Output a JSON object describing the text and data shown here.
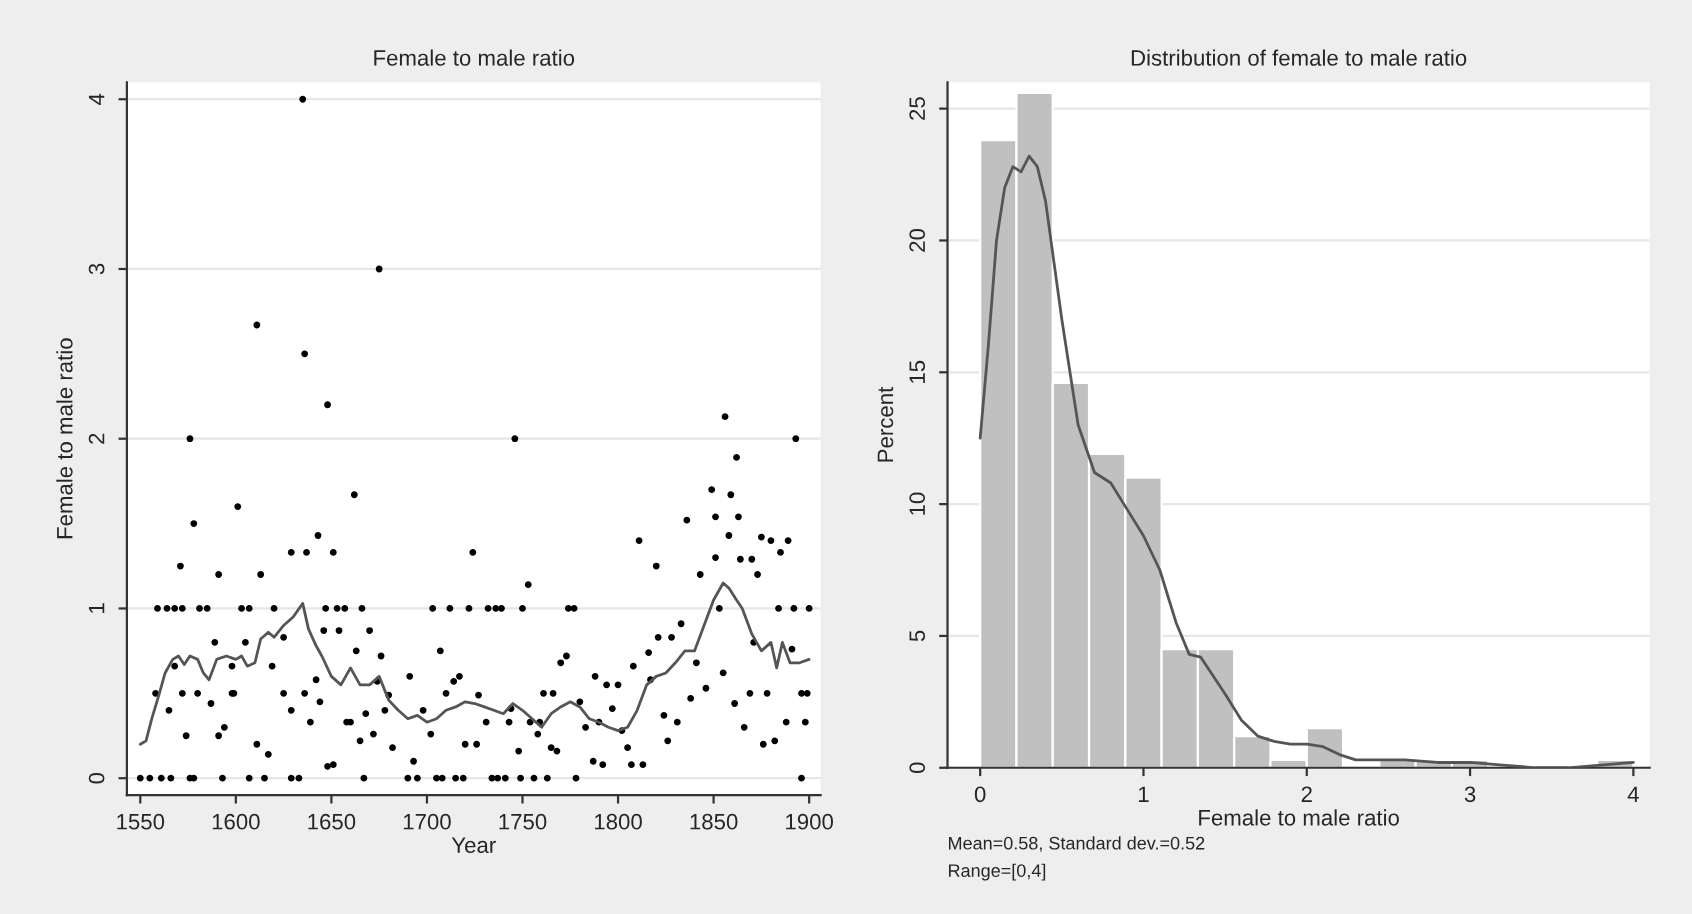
{
  "chart_data": [
    {
      "type": "scatter",
      "title": "Female to male ratio",
      "xlabel": "Year",
      "ylabel": "Female to male ratio",
      "xlim": [
        1543,
        1906
      ],
      "xticks": [
        1550,
        1600,
        1650,
        1700,
        1750,
        1800,
        1850,
        1900
      ],
      "ylim": [
        -0.1,
        4.1
      ],
      "yticks": [
        0,
        1,
        2,
        3,
        4
      ],
      "grid": "y",
      "series": [
        {
          "color": "#000000",
          "marker": "circle",
          "x": [
            1550,
            1555,
            1561,
            1566,
            1559,
            1564,
            1568,
            1572,
            1581,
            1585,
            1571,
            1576,
            1578,
            1558,
            1565,
            1568,
            1572,
            1574,
            1576,
            1578,
            1580,
            1587,
            1589,
            1591,
            1591,
            1593,
            1594,
            1598,
            1598,
            1599,
            1601,
            1603,
            1607,
            1605,
            1607,
            1611,
            1613,
            1611,
            1615,
            1617,
            1619,
            1620,
            1625,
            1625,
            1629,
            1629,
            1629,
            1633,
            1635,
            1636,
            1636,
            1637,
            1639,
            1642,
            1643,
            1644,
            1646,
            1647,
            1648,
            1648,
            1651,
            1651,
            1653,
            1654,
            1657,
            1658,
            1660,
            1662,
            1663,
            1665,
            1666,
            1667,
            1668,
            1670,
            1672,
            1674,
            1676,
            1678,
            1680,
            1682,
            1675,
            1690,
            1693,
            1695,
            1691,
            1698,
            1702,
            1703,
            1705,
            1707,
            1708,
            1710,
            1712,
            1714,
            1715,
            1717,
            1719,
            1720,
            1722,
            1724,
            1726,
            1727,
            1731,
            1732,
            1734,
            1736,
            1737,
            1739,
            1741,
            1743,
            1744,
            1746,
            1748,
            1749,
            1750,
            1753,
            1754,
            1756,
            1758,
            1759,
            1761,
            1763,
            1765,
            1766,
            1768,
            1770,
            1773,
            1774,
            1777,
            1778,
            1780,
            1783,
            1787,
            1788,
            1790,
            1792,
            1794,
            1797,
            1800,
            1802,
            1805,
            1807,
            1808,
            1811,
            1813,
            1816,
            1817,
            1820,
            1821,
            1824,
            1826,
            1828,
            1831,
            1833,
            1836,
            1838,
            1841,
            1843,
            1846,
            1849,
            1851,
            1851,
            1853,
            1855,
            1856,
            1858,
            1859,
            1861,
            1862,
            1863,
            1864,
            1866,
            1869,
            1870,
            1871,
            1873,
            1875,
            1876,
            1878,
            1880,
            1882,
            1884,
            1885,
            1888,
            1889,
            1891,
            1892,
            1893,
            1896,
            1896,
            1898,
            1900,
            1899
          ],
          "values": [
            0,
            0,
            0,
            0,
            1,
            1,
            1,
            1,
            1,
            1,
            1.25,
            2.0,
            1.5,
            0.5,
            0.4,
            0.66,
            0.5,
            0.25,
            0,
            0,
            0.5,
            0.44,
            0.8,
            1.2,
            0.25,
            0,
            0.3,
            0.66,
            0.5,
            0.5,
            1.6,
            1,
            1,
            0.8,
            0,
            2.67,
            1.2,
            0.2,
            0,
            0.14,
            0.66,
            1,
            0.83,
            0.5,
            1.33,
            0.4,
            0,
            0,
            4.0,
            2.5,
            0.5,
            1.33,
            0.33,
            0.58,
            1.43,
            0.45,
            0.87,
            1,
            2.2,
            0.07,
            0.08,
            1.33,
            1,
            0.87,
            1,
            0.33,
            0.33,
            1.67,
            0.75,
            0.22,
            1,
            0,
            0.38,
            0.87,
            0.26,
            0.57,
            0.72,
            0.4,
            0.49,
            0.18,
            3.0,
            0,
            0.1,
            0,
            0.6,
            0.4,
            0.26,
            1,
            0,
            0.75,
            0,
            0.5,
            1,
            0.57,
            0,
            0.6,
            0,
            0.2,
            1,
            1.33,
            0.2,
            0.49,
            0.33,
            1,
            0,
            1,
            0,
            1,
            0,
            0.33,
            0.41,
            2.0,
            0.16,
            0,
            1,
            1.14,
            0.33,
            0,
            0.26,
            0.33,
            0.5,
            0,
            0.18,
            0.5,
            0.16,
            0.68,
            0.72,
            1,
            1,
            0,
            0.45,
            0.3,
            0.1,
            0.6,
            0.33,
            0.08,
            0.55,
            0.41,
            0.55,
            0.28,
            0.18,
            0.08,
            0.66,
            1.4,
            0.08,
            0.74,
            0.58,
            1.25,
            0.83,
            0.37,
            0.22,
            0.83,
            0.33,
            0.91,
            1.52,
            0.47,
            0.68,
            1.2,
            0.53,
            1.7,
            1.3,
            1.54,
            1,
            0.62,
            2.13,
            1.43,
            1.67,
            0.44,
            1.89,
            1.54,
            1.29,
            0.3,
            0.5,
            1.29,
            0.8,
            1.2,
            1.42,
            0.2,
            0.5,
            1.4,
            0.22,
            1,
            1.33,
            0.33,
            1.4,
            0.76,
            1,
            2.0,
            0.5,
            0,
            0.33,
            1,
            0.5
          ]
        },
        {
          "type": "line",
          "color": "#555555",
          "line_style": "solid",
          "x": [
            1550,
            1553,
            1556,
            1560,
            1563,
            1567,
            1570,
            1573,
            1576,
            1580,
            1583,
            1586,
            1590,
            1595,
            1600,
            1603,
            1606,
            1610,
            1613,
            1617,
            1620,
            1625,
            1630,
            1635,
            1638,
            1642,
            1645,
            1650,
            1655,
            1660,
            1665,
            1670,
            1675,
            1680,
            1685,
            1690,
            1695,
            1700,
            1705,
            1710,
            1715,
            1720,
            1725,
            1730,
            1735,
            1740,
            1745,
            1750,
            1755,
            1760,
            1765,
            1770,
            1775,
            1780,
            1785,
            1790,
            1795,
            1800,
            1805,
            1810,
            1815,
            1820,
            1825,
            1830,
            1835,
            1840,
            1845,
            1850,
            1855,
            1858,
            1862,
            1865,
            1870,
            1875,
            1880,
            1883,
            1886,
            1890,
            1895,
            1900
          ],
          "values": [
            0.2,
            0.22,
            0.35,
            0.5,
            0.62,
            0.7,
            0.72,
            0.67,
            0.72,
            0.7,
            0.62,
            0.58,
            0.7,
            0.72,
            0.7,
            0.72,
            0.66,
            0.68,
            0.82,
            0.86,
            0.83,
            0.9,
            0.95,
            1.03,
            0.88,
            0.78,
            0.72,
            0.6,
            0.55,
            0.65,
            0.55,
            0.55,
            0.6,
            0.46,
            0.4,
            0.35,
            0.37,
            0.33,
            0.35,
            0.4,
            0.42,
            0.45,
            0.44,
            0.42,
            0.4,
            0.38,
            0.44,
            0.4,
            0.35,
            0.3,
            0.38,
            0.42,
            0.45,
            0.42,
            0.35,
            0.33,
            0.3,
            0.28,
            0.3,
            0.4,
            0.55,
            0.6,
            0.62,
            0.68,
            0.75,
            0.75,
            0.9,
            1.05,
            1.15,
            1.12,
            1.05,
            1.0,
            0.85,
            0.75,
            0.8,
            0.65,
            0.8,
            0.68,
            0.68,
            0.7
          ]
        }
      ]
    },
    {
      "type": "histogram",
      "title": "Distribution of female to male ratio",
      "xlabel": "Female to male ratio",
      "ylabel": "Percent",
      "xlim": [
        -0.2,
        4.1
      ],
      "xticks": [
        0,
        1,
        2,
        3,
        4
      ],
      "ylim": [
        0,
        26
      ],
      "yticks": [
        0,
        5,
        10,
        15,
        20,
        25
      ],
      "grid": "y",
      "annotations": [
        "Mean=0.58, Standard dev.=0.52",
        "Range=[0,4]"
      ],
      "series": [
        {
          "color": "#c0c0c0",
          "bins": [
            0,
            0.2222,
            0.4444,
            0.6667,
            0.8889,
            1.1111,
            1.3333,
            1.5556,
            1.7778,
            2.0,
            2.2222,
            2.4444,
            2.6667,
            2.8889,
            3.1111,
            3.3333,
            3.5556,
            3.7778,
            4.0
          ],
          "values": [
            23.8,
            25.6,
            14.6,
            11.9,
            11.0,
            4.5,
            4.5,
            1.2,
            0.3,
            1.5,
            0,
            0.3,
            0.3,
            0.3,
            0,
            0,
            0,
            0.3
          ]
        },
        {
          "type": "line",
          "color": "#555555",
          "line_style": "solid",
          "x": [
            0,
            0.05,
            0.1,
            0.15,
            0.2,
            0.25,
            0.3,
            0.35,
            0.4,
            0.5,
            0.6,
            0.7,
            0.8,
            0.9,
            1.0,
            1.1,
            1.2,
            1.28,
            1.35,
            1.5,
            1.6,
            1.7,
            1.8,
            1.9,
            2.0,
            2.1,
            2.2,
            2.3,
            2.5,
            2.6,
            2.8,
            3.0,
            3.2,
            3.4,
            3.6,
            3.8,
            4.0
          ],
          "values": [
            12.5,
            16,
            20,
            22,
            22.8,
            22.6,
            23.2,
            22.8,
            21.5,
            17,
            13,
            11.2,
            10.8,
            9.8,
            8.8,
            7.5,
            5.5,
            4.3,
            4.2,
            2.8,
            1.8,
            1.2,
            1.0,
            0.9,
            0.9,
            0.8,
            0.5,
            0.3,
            0.3,
            0.3,
            0.2,
            0.2,
            0.1,
            0.0,
            0.0,
            0.1,
            0.2
          ]
        }
      ]
    }
  ]
}
